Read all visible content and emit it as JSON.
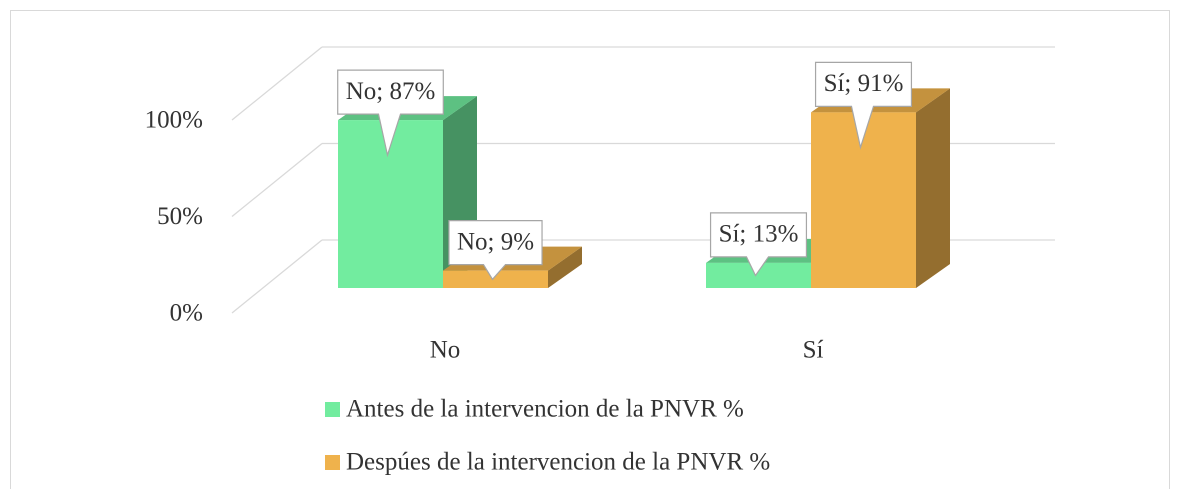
{
  "chart_data": {
    "type": "bar3d",
    "categories": [
      "No",
      "Sí"
    ],
    "series": [
      {
        "name": "Antes de la intervencion de la PNVR %",
        "color": "#72ec9f",
        "values": [
          87,
          13
        ],
        "value_labels": [
          "No; 87%",
          "Sí; 13%"
        ]
      },
      {
        "name": "Despúes de la intervencion de la PNVR %",
        "color": "#efb24c",
        "values": [
          9,
          91
        ],
        "value_labels": [
          "No; 9%",
          "Sí; 91%"
        ]
      }
    ],
    "ylim": [
      0,
      100
    ],
    "yticks": [
      {
        "value": 0,
        "label": "0%"
      },
      {
        "value": 50,
        "label": "50%"
      },
      {
        "value": 100,
        "label": "100%"
      }
    ],
    "grid": true
  }
}
